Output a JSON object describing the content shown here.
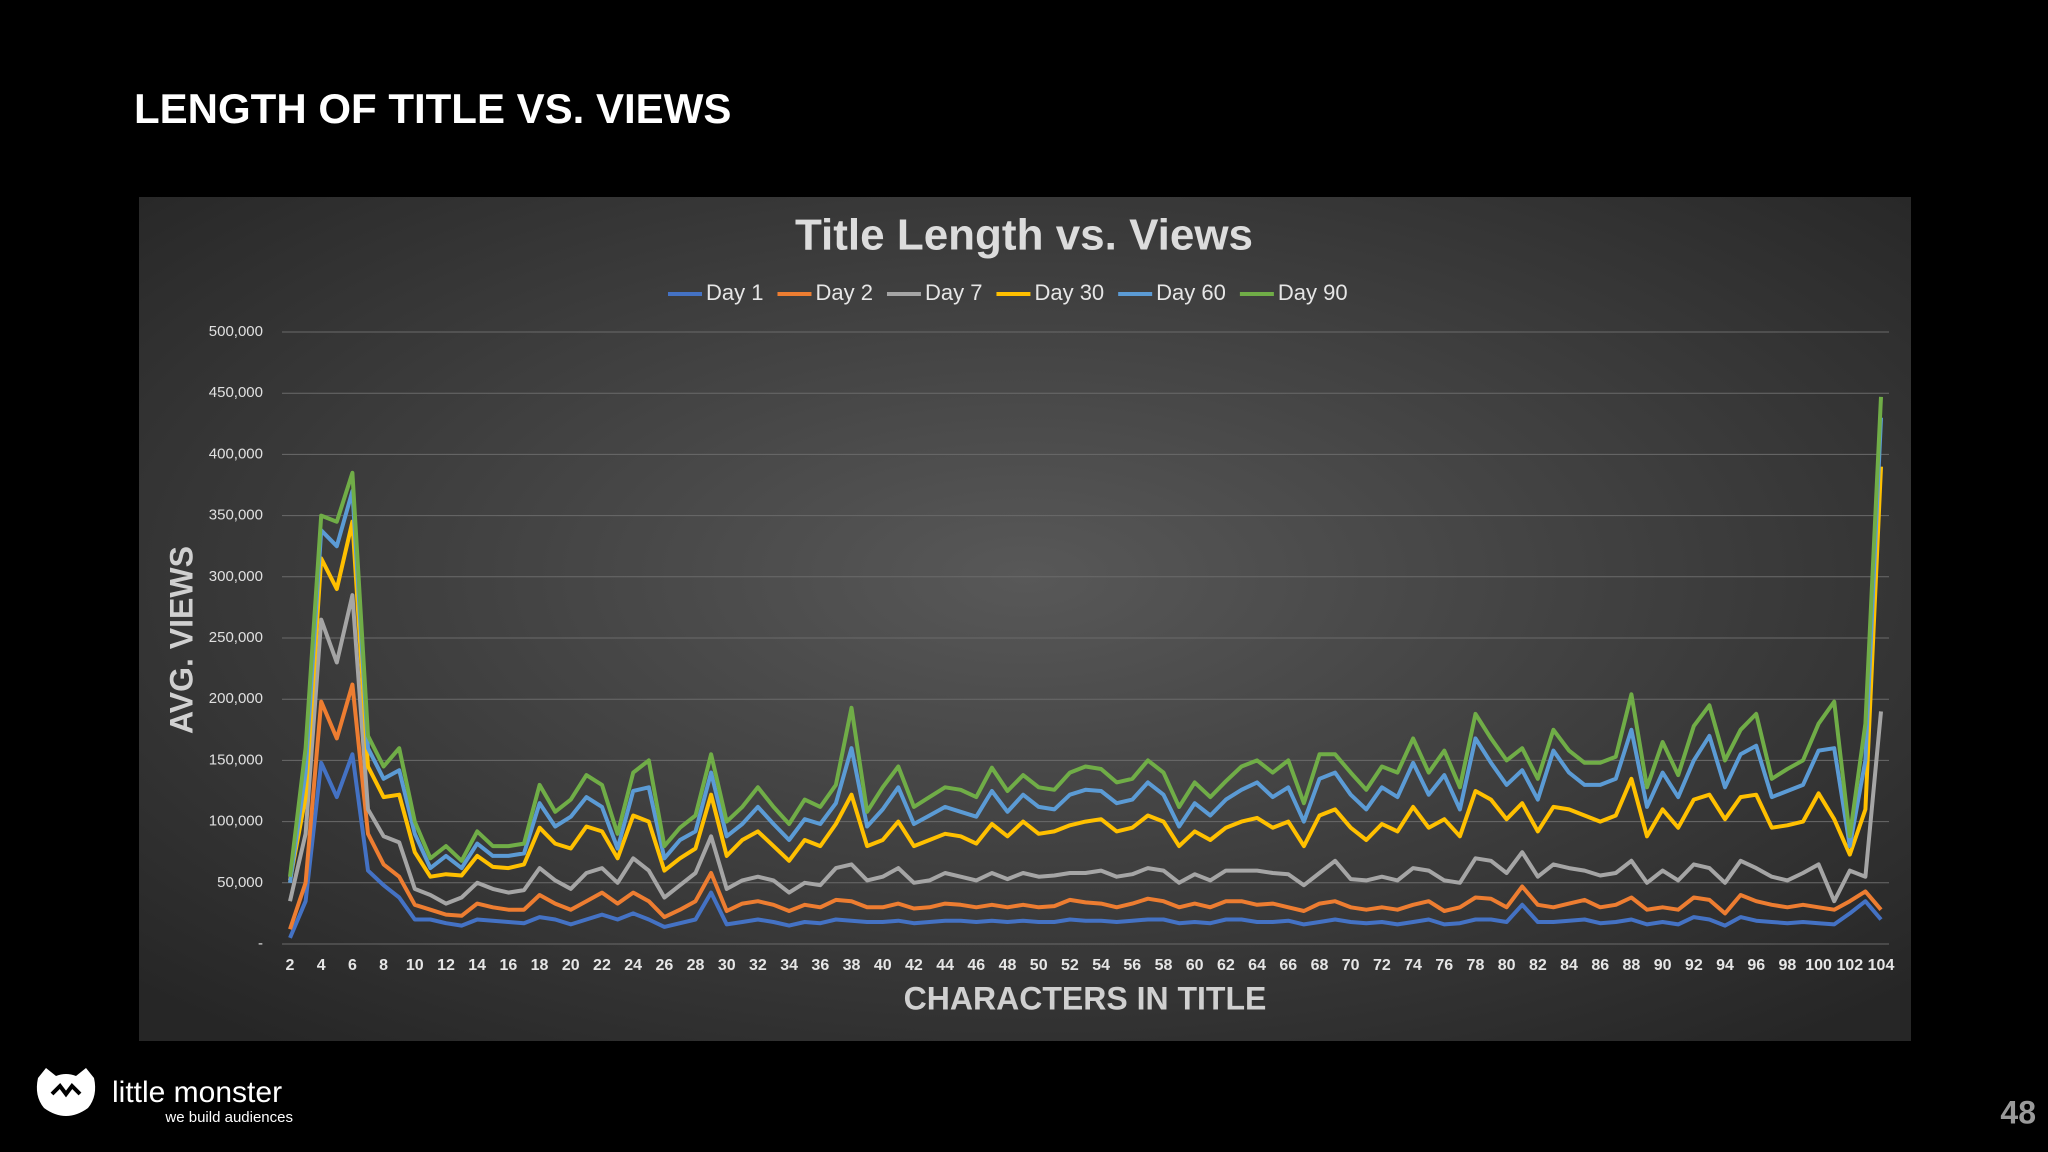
{
  "header": {
    "title": "LENGTH OF TITLE VS. VIEWS"
  },
  "footer": {
    "brand": "little monster",
    "tagline": "we build audiences",
    "page": "48"
  },
  "chart_data": {
    "type": "line",
    "title": "Title Length vs. Views",
    "x_label": "CHARACTERS IN TITLE",
    "y_label": "AVG. VIEWS",
    "categories": [
      2,
      null,
      4,
      null,
      6,
      null,
      8,
      null,
      10,
      null,
      12,
      null,
      14,
      null,
      16,
      null,
      18,
      null,
      20,
      null,
      22,
      null,
      24,
      null,
      26,
      null,
      28,
      null,
      30,
      null,
      32,
      null,
      34,
      null,
      36,
      null,
      38,
      null,
      40,
      null,
      42,
      null,
      44,
      null,
      46,
      null,
      48,
      null,
      50,
      null,
      52,
      null,
      54,
      null,
      56,
      null,
      58,
      null,
      60,
      null,
      62,
      null,
      64,
      null,
      66,
      null,
      68,
      null,
      70,
      null,
      72,
      null,
      74,
      null,
      76,
      null,
      78,
      null,
      80,
      null,
      82,
      null,
      84,
      null,
      86,
      null,
      88,
      null,
      90,
      null,
      92,
      null,
      94,
      null,
      96,
      null,
      98,
      null,
      100,
      null,
      102,
      null,
      104
    ],
    "ylim": [
      0,
      500000
    ],
    "yticks": [
      {
        "value": 0,
        "label": "-"
      },
      {
        "value": 50000,
        "label": "50,000"
      },
      {
        "value": 100000,
        "label": "100,000"
      },
      {
        "value": 150000,
        "label": "150,000"
      },
      {
        "value": 200000,
        "label": "200,000"
      },
      {
        "value": 250000,
        "label": "250,000"
      },
      {
        "value": 300000,
        "label": "300,000"
      },
      {
        "value": 350000,
        "label": "350,000"
      },
      {
        "value": 400000,
        "label": "400,000"
      },
      {
        "value": 450000,
        "label": "450,000"
      },
      {
        "value": 500000,
        "label": "500,000"
      }
    ],
    "grid": true,
    "legend": "top",
    "series": [
      {
        "name": "Day 1",
        "color": "#4472c4",
        "values": [
          5000,
          35000,
          148000,
          120000,
          155000,
          60000,
          48000,
          38000,
          20000,
          20000,
          17000,
          15000,
          20000,
          19000,
          18000,
          17000,
          22000,
          20000,
          16000,
          20000,
          24000,
          20000,
          25000,
          20000,
          14000,
          17000,
          20000,
          42000,
          16000,
          18000,
          20000,
          18000,
          15000,
          18000,
          17000,
          20000,
          19000,
          18000,
          18000,
          19000,
          17000,
          18000,
          19000,
          19000,
          18000,
          19000,
          18000,
          19000,
          18000,
          18000,
          20000,
          19000,
          19000,
          18000,
          19000,
          20000,
          20000,
          17000,
          18000,
          17000,
          20000,
          20000,
          18000,
          18000,
          19000,
          16000,
          18000,
          20000,
          18000,
          17000,
          18000,
          16000,
          18000,
          20000,
          16000,
          17000,
          20000,
          20000,
          18000,
          32000,
          18000,
          18000,
          19000,
          20000,
          17000,
          18000,
          20000,
          16000,
          18000,
          16000,
          22000,
          20000,
          15000,
          22000,
          19000,
          18000,
          17000,
          18000,
          17000,
          16000,
          25000,
          35000,
          20000
        ]
      },
      {
        "name": "Day 2",
        "color": "#ed7d31",
        "values": [
          12000,
          50000,
          198000,
          168000,
          212000,
          90000,
          65000,
          55000,
          32000,
          28000,
          24000,
          23000,
          33000,
          30000,
          28000,
          28000,
          40000,
          33000,
          28000,
          35000,
          42000,
          33000,
          42000,
          35000,
          22000,
          28000,
          35000,
          58000,
          27000,
          33000,
          35000,
          32000,
          27000,
          32000,
          30000,
          36000,
          35000,
          30000,
          30000,
          33000,
          29000,
          30000,
          33000,
          32000,
          30000,
          32000,
          30000,
          32000,
          30000,
          31000,
          36000,
          34000,
          33000,
          30000,
          33000,
          37000,
          35000,
          30000,
          33000,
          30000,
          35000,
          35000,
          32000,
          33000,
          30000,
          27000,
          33000,
          35000,
          30000,
          28000,
          30000,
          28000,
          32000,
          35000,
          27000,
          30000,
          38000,
          37000,
          30000,
          47000,
          32000,
          30000,
          33000,
          36000,
          30000,
          32000,
          38000,
          28000,
          30000,
          28000,
          38000,
          36000,
          25000,
          40000,
          35000,
          32000,
          30000,
          32000,
          30000,
          28000,
          35000,
          43000,
          28000
        ]
      },
      {
        "name": "Day 7",
        "color": "#a5a5a5",
        "values": [
          35000,
          90000,
          265000,
          230000,
          285000,
          110000,
          88000,
          83000,
          45000,
          40000,
          33000,
          38000,
          50000,
          45000,
          42000,
          44000,
          62000,
          52000,
          45000,
          58000,
          62000,
          50000,
          70000,
          60000,
          38000,
          48000,
          58000,
          88000,
          45000,
          52000,
          55000,
          52000,
          42000,
          50000,
          48000,
          62000,
          65000,
          52000,
          55000,
          62000,
          50000,
          52000,
          58000,
          55000,
          52000,
          58000,
          53000,
          58000,
          55000,
          56000,
          58000,
          58000,
          60000,
          55000,
          57000,
          62000,
          60000,
          50000,
          57000,
          52000,
          60000,
          60000,
          60000,
          58000,
          57000,
          48000,
          58000,
          68000,
          53000,
          52000,
          55000,
          52000,
          62000,
          60000,
          52000,
          50000,
          70000,
          68000,
          58000,
          75000,
          55000,
          65000,
          62000,
          60000,
          56000,
          58000,
          68000,
          50000,
          60000,
          52000,
          65000,
          62000,
          50000,
          68000,
          62000,
          55000,
          52000,
          58000,
          65000,
          35000,
          60000,
          55000,
          190000
        ]
      },
      {
        "name": "Day 30",
        "color": "#ffc000",
        "values": [
          52000,
          120000,
          315000,
          290000,
          345000,
          145000,
          120000,
          122000,
          75000,
          55000,
          57000,
          56000,
          72000,
          63000,
          62000,
          65000,
          95000,
          82000,
          78000,
          96000,
          92000,
          70000,
          105000,
          100000,
          60000,
          70000,
          78000,
          122000,
          72000,
          85000,
          92000,
          80000,
          68000,
          85000,
          80000,
          98000,
          122000,
          80000,
          85000,
          100000,
          80000,
          85000,
          90000,
          88000,
          82000,
          98000,
          88000,
          100000,
          90000,
          92000,
          97000,
          100000,
          102000,
          92000,
          95000,
          105000,
          100000,
          80000,
          92000,
          85000,
          95000,
          100000,
          103000,
          95000,
          100000,
          80000,
          105000,
          110000,
          95000,
          85000,
          98000,
          92000,
          112000,
          95000,
          102000,
          88000,
          125000,
          118000,
          102000,
          115000,
          92000,
          112000,
          110000,
          105000,
          100000,
          105000,
          135000,
          88000,
          110000,
          95000,
          118000,
          122000,
          102000,
          120000,
          122000,
          95000,
          97000,
          100000,
          123000,
          102000,
          73000,
          110000,
          390000
        ]
      },
      {
        "name": "Day 60",
        "color": "#5b9bd5",
        "values": [
          50000,
          140000,
          338000,
          325000,
          370000,
          160000,
          135000,
          142000,
          90000,
          62000,
          72000,
          62000,
          82000,
          72000,
          72000,
          74000,
          115000,
          96000,
          104000,
          120000,
          112000,
          78000,
          125000,
          128000,
          70000,
          85000,
          92000,
          140000,
          88000,
          98000,
          112000,
          98000,
          85000,
          102000,
          98000,
          115000,
          160000,
          96000,
          110000,
          128000,
          98000,
          105000,
          112000,
          108000,
          104000,
          125000,
          108000,
          122000,
          112000,
          110000,
          122000,
          126000,
          125000,
          115000,
          118000,
          132000,
          122000,
          96000,
          115000,
          105000,
          118000,
          126000,
          132000,
          120000,
          128000,
          100000,
          135000,
          140000,
          122000,
          110000,
          128000,
          120000,
          148000,
          122000,
          138000,
          110000,
          168000,
          148000,
          130000,
          142000,
          118000,
          158000,
          140000,
          130000,
          130000,
          135000,
          175000,
          112000,
          140000,
          120000,
          150000,
          170000,
          128000,
          155000,
          162000,
          120000,
          125000,
          130000,
          158000,
          160000,
          80000,
          150000,
          430000
        ]
      },
      {
        "name": "Day 90",
        "color": "#70ad47",
        "values": [
          55000,
          160000,
          350000,
          345000,
          385000,
          170000,
          145000,
          160000,
          100000,
          70000,
          80000,
          68000,
          92000,
          80000,
          80000,
          82000,
          130000,
          108000,
          118000,
          138000,
          130000,
          90000,
          140000,
          150000,
          80000,
          95000,
          105000,
          155000,
          100000,
          112000,
          128000,
          112000,
          98000,
          118000,
          112000,
          130000,
          193000,
          108000,
          128000,
          145000,
          112000,
          120000,
          128000,
          126000,
          120000,
          144000,
          125000,
          138000,
          128000,
          126000,
          140000,
          145000,
          143000,
          132000,
          135000,
          150000,
          140000,
          112000,
          132000,
          120000,
          133000,
          145000,
          150000,
          140000,
          150000,
          115000,
          155000,
          155000,
          140000,
          126000,
          145000,
          140000,
          168000,
          140000,
          158000,
          128000,
          188000,
          168000,
          150000,
          160000,
          135000,
          175000,
          158000,
          148000,
          148000,
          153000,
          204000,
          128000,
          165000,
          138000,
          178000,
          195000,
          150000,
          175000,
          188000,
          135000,
          143000,
          150000,
          180000,
          198000,
          88000,
          180000,
          447000
        ]
      }
    ]
  }
}
